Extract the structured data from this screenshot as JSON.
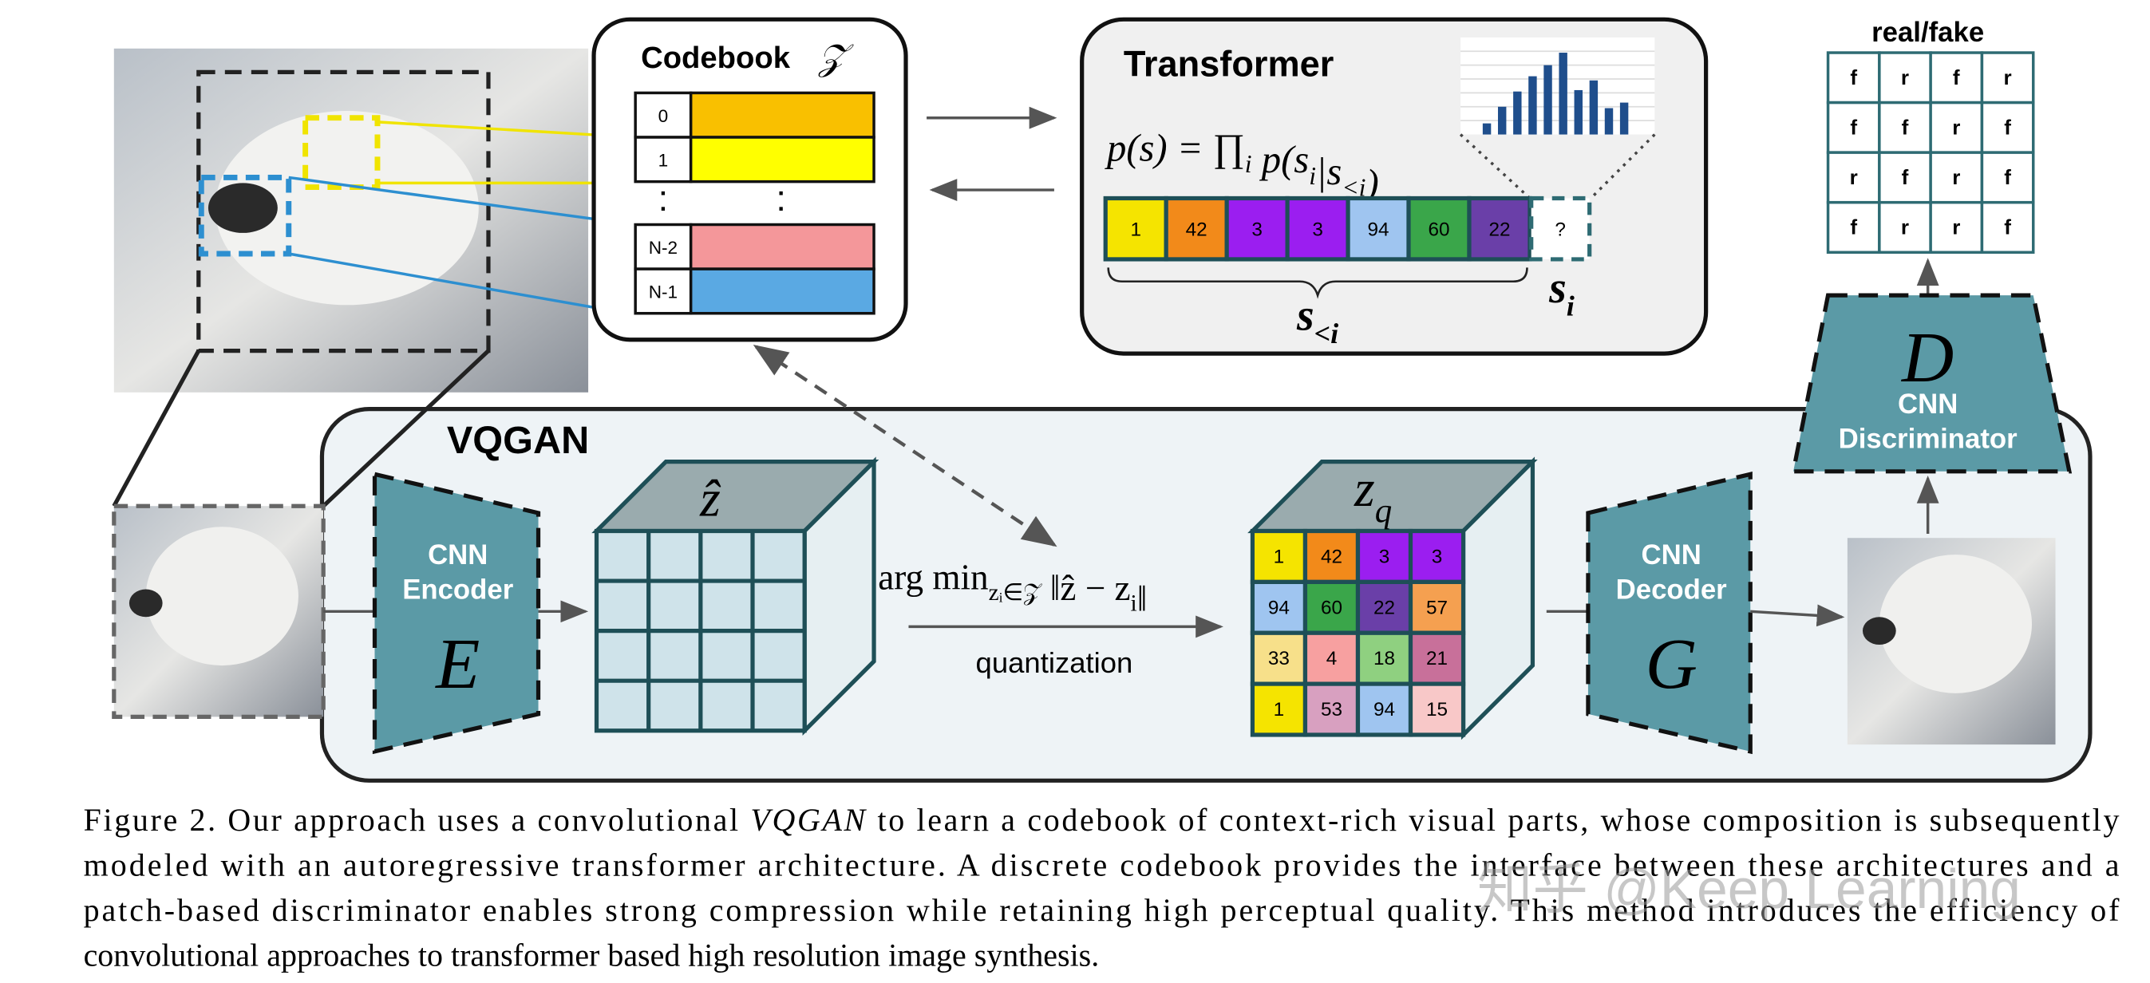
{
  "codebook": {
    "title": "Codebook",
    "symbol": "𝒵",
    "rows": [
      {
        "index": "0",
        "color": "#f9c000"
      },
      {
        "index": "1",
        "color": "#ffff00"
      },
      {
        "index": "N-2",
        "color": "#f4979a"
      },
      {
        "index": "N-1",
        "color": "#5aa9e3"
      }
    ]
  },
  "transformer": {
    "title": "Transformer",
    "formula": [
      {
        "text": "p(s) = ∏"
      },
      {
        "sub": "i"
      },
      {
        "text": " p(s"
      },
      {
        "sub": "i"
      },
      {
        "text": "|s"
      },
      {
        "sub": "<i"
      },
      {
        "text": ")"
      }
    ],
    "sequence": [
      {
        "label": "1",
        "color": "#f5e400"
      },
      {
        "label": "42",
        "color": "#f28a1a"
      },
      {
        "label": "3",
        "color": "#9b1ef0"
      },
      {
        "label": "3",
        "color": "#9b1ef0"
      },
      {
        "label": "94",
        "color": "#9fc5f0"
      },
      {
        "label": "60",
        "color": "#3aa64a"
      },
      {
        "label": "22",
        "color": "#6a3fa8"
      }
    ],
    "next": "?",
    "context_label": [
      {
        "text": "s"
      },
      {
        "sub": "<i"
      }
    ],
    "next_label": [
      {
        "text": "s"
      },
      {
        "sub": "i"
      }
    ]
  },
  "discriminator_output": {
    "title": "real/fake",
    "grid": [
      [
        "f",
        "r",
        "f",
        "r"
      ],
      [
        "f",
        "f",
        "r",
        "f"
      ],
      [
        "r",
        "f",
        "r",
        "f"
      ],
      [
        "f",
        "r",
        "r",
        "f"
      ]
    ]
  },
  "vqgan": {
    "title": "VQGAN",
    "encoder": {
      "label": [
        "CNN",
        "Encoder"
      ],
      "symbol": "E"
    },
    "z_hat": "ẑ",
    "quantization": {
      "formula": [
        {
          "text": "arg min"
        },
        {
          "sub": "zᵢ∈𝒵"
        },
        {
          "text": " ‖ẑ − z"
        },
        {
          "sub": "i"
        },
        {
          "text": "‖"
        }
      ],
      "label": "quantization"
    },
    "zq": {
      "symbol": [
        {
          "text": "z"
        },
        {
          "sub": "q"
        }
      ],
      "grid": [
        [
          {
            "label": "1",
            "color": "#f5e400"
          },
          {
            "label": "42",
            "color": "#f28a1a"
          },
          {
            "label": "3",
            "color": "#9b1ef0"
          },
          {
            "label": "3",
            "color": "#9b1ef0"
          }
        ],
        [
          {
            "label": "94",
            "color": "#9fc5f0"
          },
          {
            "label": "60",
            "color": "#3aa64a"
          },
          {
            "label": "22",
            "color": "#6a3fa8"
          },
          {
            "label": "57",
            "color": "#f5a050"
          }
        ],
        [
          {
            "label": "33",
            "color": "#f7e08a"
          },
          {
            "label": "4",
            "color": "#f7a0a0"
          },
          {
            "label": "18",
            "color": "#8fd080"
          },
          {
            "label": "21",
            "color": "#c8709a"
          }
        ],
        [
          {
            "label": "1",
            "color": "#f5e400"
          },
          {
            "label": "53",
            "color": "#d8a0c0"
          },
          {
            "label": "94",
            "color": "#9fc5f0"
          },
          {
            "label": "15",
            "color": "#f8c8c8"
          }
        ]
      ]
    },
    "decoder": {
      "label": [
        "CNN",
        "Decoder"
      ],
      "symbol": "G"
    }
  },
  "discriminator": {
    "symbol": "D",
    "label": [
      "CNN",
      "Discriminator"
    ]
  },
  "caption": {
    "lines": [
      [
        {
          "text": "Figure 2. Our approach uses a convolutional "
        },
        {
          "italic": "VQGAN"
        },
        {
          "text": " to learn a codebook of context-rich visual parts, whose composition is subsequently"
        }
      ],
      [
        {
          "text": "modeled with an autoregressive transformer architecture.  A discrete codebook provides the interface between these architectures and a"
        }
      ],
      [
        {
          "text": "patch-based discriminator enables strong compression while retaining high perceptual quality. This method introduces the efficiency of"
        }
      ],
      [
        {
          "text": "convolutional approaches to transformer based high resolution image synthesis."
        }
      ]
    ]
  },
  "watermark": "知乎 @Keep Learning"
}
